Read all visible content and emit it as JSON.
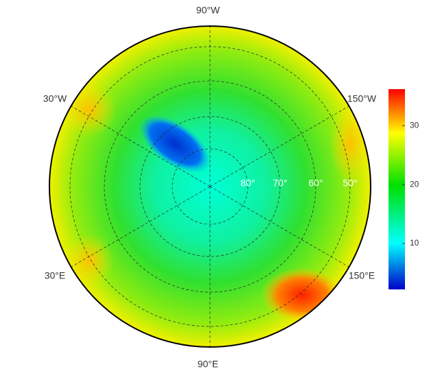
{
  "map": {
    "longitude_labels": [
      "90°W",
      "30°W",
      "150°W",
      "30°E",
      "150°E",
      "90°E"
    ],
    "latitude_labels": [
      "80°",
      "70°",
      "60°",
      "50°"
    ]
  },
  "colorbar": {
    "range": [
      2.2,
      36.2
    ],
    "ticks": [
      10,
      20,
      30
    ]
  }
}
